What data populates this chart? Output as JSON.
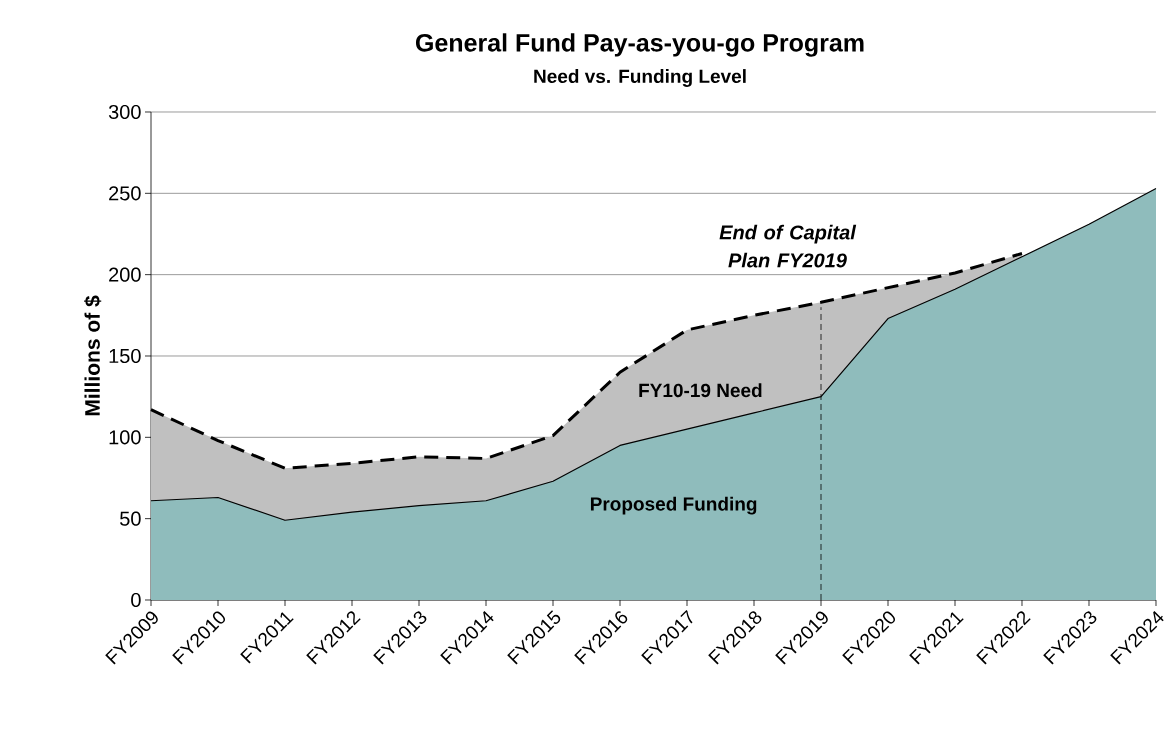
{
  "chart_data": {
    "type": "area",
    "title": "General Fund Pay-as-you-go Program",
    "subtitle": "Need vs. Funding Level",
    "ylabel": "Millions of $",
    "categories": [
      "FY2009",
      "FY2010",
      "FY2011",
      "FY2012",
      "FY2013",
      "FY2014",
      "FY2015",
      "FY2016",
      "FY2017",
      "FY2018",
      "FY2019",
      "FY2020",
      "FY2021",
      "FY2022",
      "FY2023",
      "FY2024"
    ],
    "series": [
      {
        "color": "#c0c0c0",
        "line_style": "dashed",
        "values": [
          117,
          98,
          81,
          84,
          88,
          87,
          101,
          140,
          166,
          175,
          183,
          192,
          201,
          213,
          null,
          null
        ]
      },
      {
        "color": "#8fbcbc",
        "line_style": "solid",
        "values": [
          61,
          63,
          49,
          54,
          58,
          61,
          73,
          95,
          105,
          115,
          125,
          173,
          191,
          211,
          231,
          253
        ]
      }
    ],
    "ylim": [
      0,
      300
    ],
    "yticks": [
      0,
      50,
      100,
      150,
      200,
      250,
      300
    ],
    "grid": "y",
    "ref_lines": [
      {
        "axis": "x",
        "value": "FY2019",
        "label": "End of Capital Plan FY2019",
        "line_style": "dashed"
      }
    ],
    "annotations": [
      "FY10-19 Need",
      "Proposed Funding"
    ]
  }
}
